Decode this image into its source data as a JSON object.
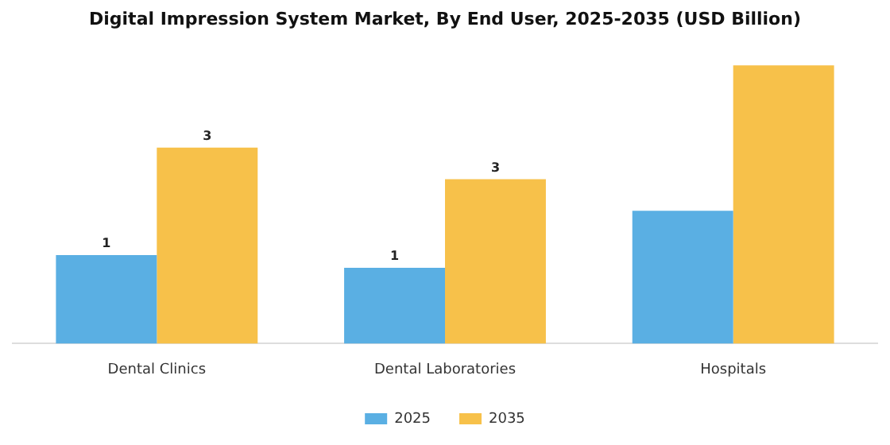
{
  "chart_data": {
    "type": "bar",
    "title": "Digital Impression System Market, By End User, 2025-2035 (USD Billion)",
    "categories": [
      "Dental Clinics",
      "Dental Laboratories",
      "Hospitals"
    ],
    "legend": "bottom",
    "grid": false,
    "series": [
      {
        "name": "2025",
        "color": "#5aafe3",
        "values": [
          1.4,
          1.2,
          2.1
        ],
        "value_labels": [
          "1",
          "1",
          null
        ]
      },
      {
        "name": "2035",
        "color": "#f7c14a",
        "values": [
          3.1,
          2.6,
          4.4
        ],
        "value_labels": [
          "3",
          "3",
          null
        ]
      }
    ]
  }
}
